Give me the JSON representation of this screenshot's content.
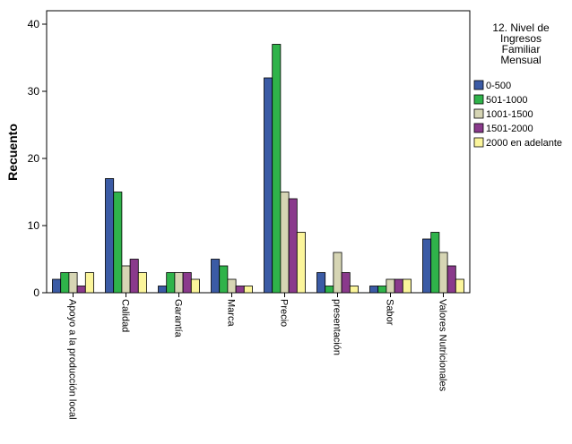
{
  "chart_data": {
    "type": "bar",
    "ylabel": "Recuento",
    "ylim": [
      0,
      42
    ],
    "yticks": [
      0,
      10,
      20,
      30,
      40
    ],
    "grid": false,
    "legend_position": "right",
    "legend_title_lines": [
      "12. Nivel de",
      "Ingresos",
      "Familiar",
      "Mensual"
    ],
    "categories": [
      "Apoyo a la producción local",
      "Calidad",
      "Garantía",
      "Marca",
      "Precio",
      "presentación",
      "Sabor",
      "Valores Nutricionales"
    ],
    "series": [
      {
        "name": "0-500",
        "color": "#3b5ba5",
        "values": [
          2,
          17,
          1,
          5,
          32,
          3,
          1,
          8
        ]
      },
      {
        "name": "501-1000",
        "color": "#2fb34a",
        "values": [
          3,
          15,
          3,
          4,
          37,
          1,
          1,
          9
        ]
      },
      {
        "name": "1001-1500",
        "color": "#d6d5b4",
        "values": [
          3,
          4,
          3,
          2,
          15,
          6,
          2,
          6
        ]
      },
      {
        "name": "1501-2000",
        "color": "#8a3a8c",
        "values": [
          1,
          5,
          3,
          1,
          14,
          3,
          2,
          4
        ]
      },
      {
        "name": "2000 en adelante",
        "color": "#fbf59b",
        "values": [
          3,
          3,
          2,
          1,
          9,
          1,
          2,
          2
        ]
      }
    ]
  }
}
